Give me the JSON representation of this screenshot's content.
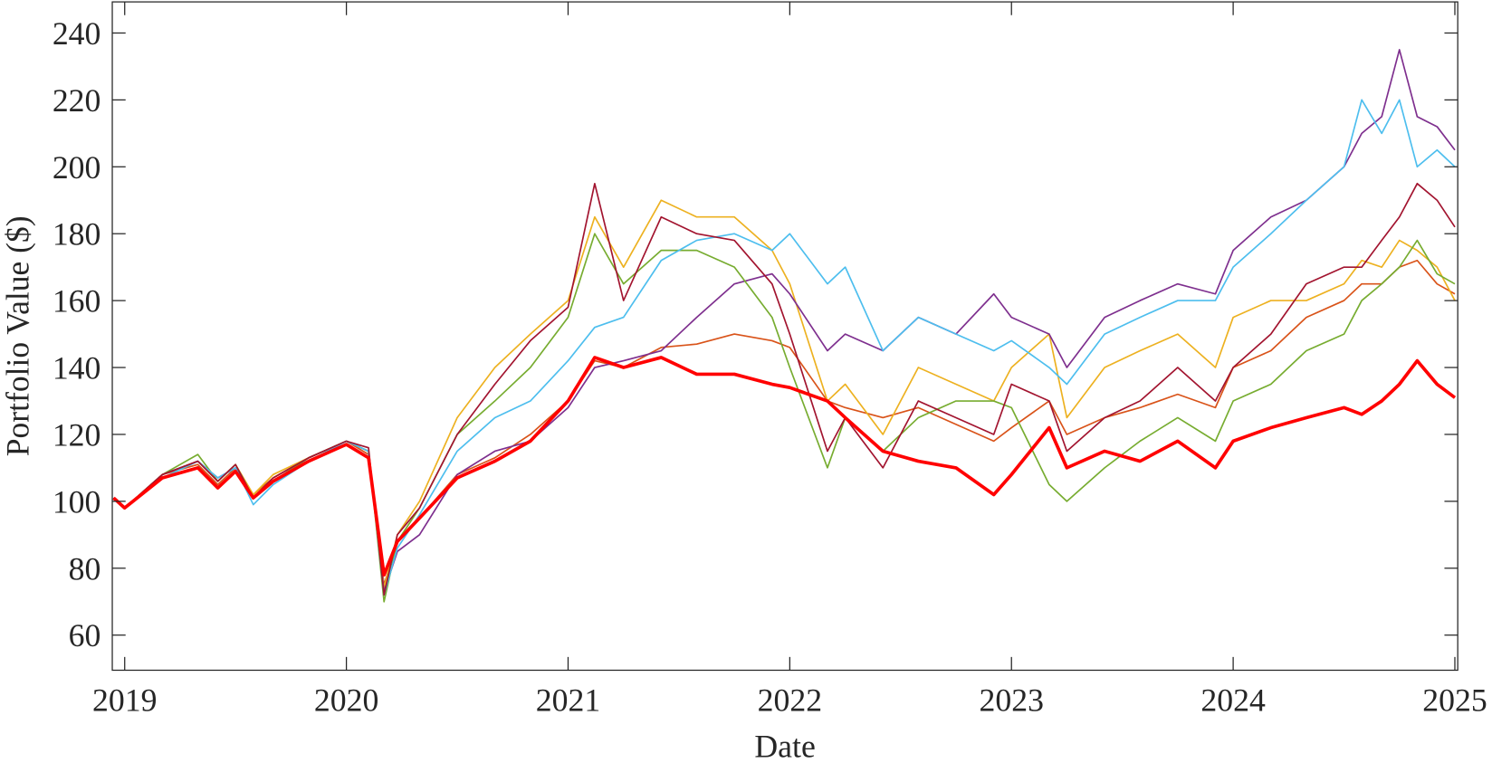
{
  "chart_data": {
    "type": "line",
    "xlabel": "Date",
    "ylabel": "Portfolio Value ($)",
    "xlim": [
      2018.944,
      2025.013
    ],
    "xticks": [
      2019,
      2020,
      2021,
      2022,
      2023,
      2024,
      2025
    ],
    "ylim": [
      49.5,
      249.3
    ],
    "yticks": [
      60,
      80,
      100,
      120,
      140,
      160,
      180,
      200,
      220,
      240
    ],
    "grid": false,
    "x": [
      2018.95,
      2019.0,
      2019.17,
      2019.33,
      2019.42,
      2019.5,
      2019.58,
      2019.67,
      2019.83,
      2020.0,
      2020.1,
      2020.17,
      2020.23,
      2020.33,
      2020.5,
      2020.67,
      2020.83,
      2021.0,
      2021.12,
      2021.25,
      2021.42,
      2021.58,
      2021.75,
      2021.92,
      2022.0,
      2022.17,
      2022.25,
      2022.42,
      2022.58,
      2022.75,
      2022.92,
      2023.0,
      2023.17,
      2023.25,
      2023.42,
      2023.58,
      2023.75,
      2023.92,
      2024.0,
      2024.17,
      2024.33,
      2024.5,
      2024.58,
      2024.67,
      2024.75,
      2024.83,
      2024.92,
      2025.0
    ],
    "series": [
      {
        "color": "#D95319",
        "width": 1.6,
        "values": [
          101,
          98,
          108,
          111,
          105,
          110,
          102,
          107,
          113,
          118,
          114,
          75,
          88,
          95,
          108,
          113,
          120,
          130,
          142,
          140,
          146,
          147,
          150,
          148,
          146,
          130,
          128,
          125,
          128,
          123,
          118,
          122,
          130,
          120,
          125,
          128,
          132,
          128,
          140,
          145,
          155,
          160,
          165,
          165,
          170,
          172,
          165,
          162
        ]
      },
      {
        "color": "#EDB120",
        "width": 1.6,
        "values": [
          101,
          98,
          108,
          112,
          106,
          111,
          102,
          108,
          113,
          118,
          115,
          74,
          90,
          100,
          125,
          140,
          150,
          160,
          185,
          170,
          190,
          185,
          185,
          175,
          165,
          130,
          135,
          120,
          140,
          135,
          130,
          140,
          150,
          125,
          140,
          145,
          150,
          140,
          155,
          160,
          160,
          165,
          172,
          170,
          178,
          175,
          170,
          160
        ]
      },
      {
        "color": "#7E2F8E",
        "width": 1.6,
        "values": [
          101,
          98,
          108,
          112,
          107,
          110,
          101,
          106,
          113,
          118,
          115,
          73,
          85,
          90,
          108,
          115,
          118,
          128,
          140,
          142,
          145,
          155,
          165,
          168,
          162,
          145,
          150,
          145,
          155,
          150,
          162,
          155,
          150,
          140,
          155,
          160,
          165,
          162,
          175,
          185,
          190,
          200,
          210,
          215,
          235,
          215,
          212,
          205
        ]
      },
      {
        "color": "#77AC30",
        "width": 1.6,
        "values": [
          101,
          98,
          108,
          114,
          106,
          111,
          101,
          106,
          113,
          118,
          115,
          70,
          88,
          98,
          120,
          130,
          140,
          155,
          180,
          165,
          175,
          175,
          170,
          155,
          140,
          110,
          125,
          115,
          125,
          130,
          130,
          128,
          105,
          100,
          110,
          118,
          125,
          118,
          130,
          135,
          145,
          150,
          160,
          165,
          170,
          178,
          168,
          165
        ]
      },
      {
        "color": "#4DBEEE",
        "width": 1.6,
        "values": [
          101,
          98,
          107,
          112,
          107,
          110,
          99,
          105,
          112,
          118,
          115,
          72,
          86,
          96,
          115,
          125,
          130,
          142,
          152,
          155,
          172,
          178,
          180,
          175,
          180,
          165,
          170,
          145,
          155,
          150,
          145,
          148,
          140,
          135,
          150,
          155,
          160,
          160,
          170,
          180,
          190,
          200,
          220,
          210,
          220,
          200,
          205,
          200
        ]
      },
      {
        "color": "#A2142F",
        "width": 1.6,
        "values": [
          101,
          98,
          108,
          112,
          106,
          111,
          101,
          107,
          113,
          118,
          116,
          72,
          90,
          98,
          120,
          135,
          148,
          158,
          195,
          160,
          185,
          180,
          178,
          165,
          150,
          115,
          125,
          110,
          130,
          125,
          120,
          135,
          130,
          115,
          125,
          130,
          140,
          130,
          140,
          150,
          165,
          170,
          170,
          178,
          185,
          195,
          190,
          182
        ]
      },
      {
        "color": "#FF0000",
        "width": 3.5,
        "values": [
          101,
          98,
          107,
          110,
          104,
          109,
          101,
          106,
          112,
          117,
          113,
          78,
          88,
          95,
          107,
          112,
          118,
          130,
          143,
          140,
          143,
          138,
          138,
          135,
          134,
          130,
          125,
          115,
          112,
          110,
          102,
          108,
          122,
          110,
          115,
          112,
          118,
          110,
          118,
          122,
          125,
          128,
          126,
          130,
          135,
          142,
          135,
          131
        ]
      }
    ]
  }
}
